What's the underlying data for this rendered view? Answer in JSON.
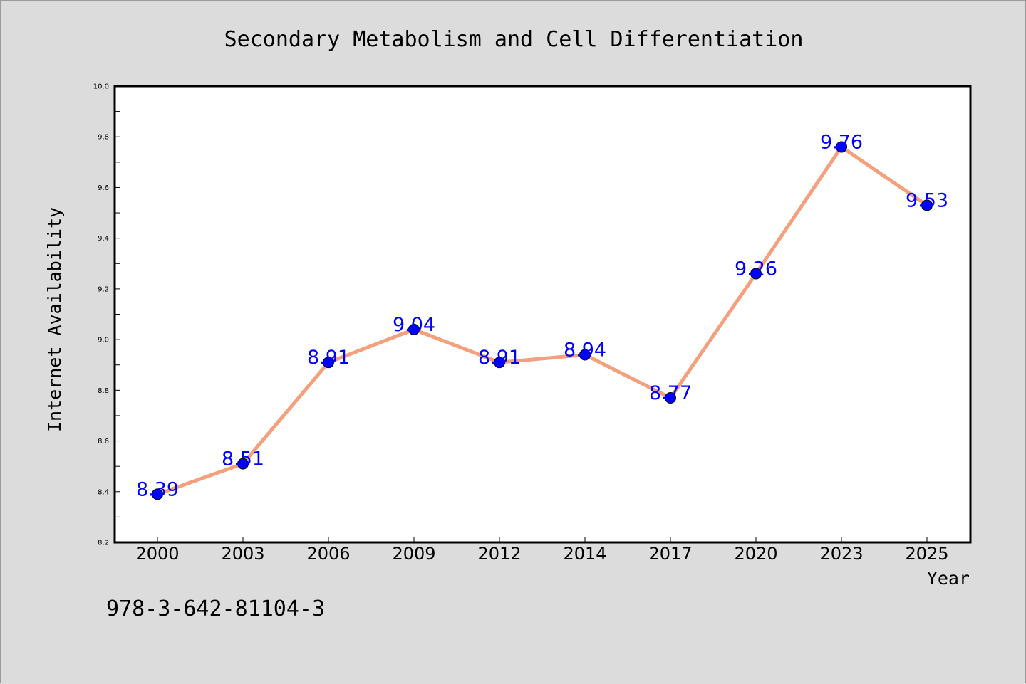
{
  "figure_code": "978-3-642-81104-3",
  "chart_data": {
    "type": "line",
    "title": "Secondary Metabolism and Cell Differentiation",
    "xlabel": "Year",
    "ylabel": "Internet Availability",
    "categories": [
      "2000",
      "2003",
      "2006",
      "2009",
      "2012",
      "2014",
      "2017",
      "2020",
      "2023",
      "2025"
    ],
    "series": [
      {
        "values": [
          8.39,
          8.51,
          8.91,
          9.04,
          8.91,
          8.94,
          8.77,
          9.26,
          9.76,
          9.53
        ]
      }
    ],
    "data_labels": [
      "8.39",
      "8.51",
      "8.91",
      "9.04",
      "8.91",
      "8.94",
      "8.77",
      "9.26",
      "9.76",
      "9.53"
    ],
    "ylim": [
      8.2,
      10.0
    ],
    "yticks": [
      "8.2",
      "8.4",
      "8.6",
      "8.8",
      "9.0",
      "9.2",
      "9.4",
      "9.6",
      "9.8",
      "10.0"
    ],
    "grid": false,
    "legend": "none",
    "line_color": "#f4a07c",
    "marker_color": "#0000ff",
    "label_color": "#0000ff",
    "plot_background": "#ffffff",
    "figure_background": "#dcdcdc"
  }
}
